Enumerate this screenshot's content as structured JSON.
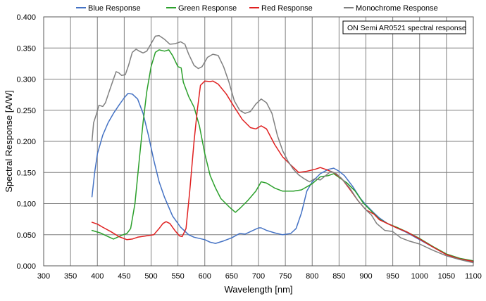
{
  "chart_data": {
    "type": "line",
    "title": "",
    "xlabel": "Wavelength [nm]",
    "ylabel": "Spectral Response [A/W]",
    "xlim": [
      300,
      1100
    ],
    "ylim": [
      0,
      0.4
    ],
    "x_ticks": [
      300,
      350,
      400,
      450,
      500,
      550,
      600,
      650,
      700,
      750,
      800,
      850,
      900,
      950,
      1000,
      1050,
      1100
    ],
    "y_ticks": [
      "0.000",
      "0.050",
      "0.100",
      "0.150",
      "0.200",
      "0.250",
      "0.300",
      "0.350",
      "0.400"
    ],
    "y_tick_values": [
      0,
      0.05,
      0.1,
      0.15,
      0.2,
      0.25,
      0.3,
      0.35,
      0.4
    ],
    "grid": true,
    "legend_position": "top",
    "annotation": "ON Semi AR0521 spectral response",
    "series": [
      {
        "name": "Blue Response",
        "color": "#4472C4",
        "points": [
          [
            390,
            0.111
          ],
          [
            395,
            0.15
          ],
          [
            400,
            0.18
          ],
          [
            410,
            0.21
          ],
          [
            420,
            0.23
          ],
          [
            430,
            0.245
          ],
          [
            440,
            0.258
          ],
          [
            450,
            0.27
          ],
          [
            457,
            0.277
          ],
          [
            465,
            0.276
          ],
          [
            475,
            0.268
          ],
          [
            485,
            0.245
          ],
          [
            495,
            0.21
          ],
          [
            505,
            0.17
          ],
          [
            515,
            0.135
          ],
          [
            525,
            0.11
          ],
          [
            540,
            0.08
          ],
          [
            555,
            0.062
          ],
          [
            570,
            0.05
          ],
          [
            580,
            0.046
          ],
          [
            600,
            0.042
          ],
          [
            610,
            0.038
          ],
          [
            620,
            0.036
          ],
          [
            635,
            0.04
          ],
          [
            650,
            0.045
          ],
          [
            665,
            0.052
          ],
          [
            675,
            0.051
          ],
          [
            690,
            0.057
          ],
          [
            700,
            0.061
          ],
          [
            705,
            0.061
          ],
          [
            715,
            0.057
          ],
          [
            730,
            0.053
          ],
          [
            745,
            0.05
          ],
          [
            760,
            0.052
          ],
          [
            770,
            0.06
          ],
          [
            780,
            0.085
          ],
          [
            790,
            0.12
          ],
          [
            800,
            0.135
          ],
          [
            815,
            0.148
          ],
          [
            830,
            0.155
          ],
          [
            840,
            0.157
          ],
          [
            850,
            0.152
          ],
          [
            860,
            0.145
          ],
          [
            875,
            0.128
          ],
          [
            890,
            0.108
          ],
          [
            900,
            0.098
          ],
          [
            915,
            0.085
          ],
          [
            925,
            0.077
          ],
          [
            940,
            0.068
          ],
          [
            960,
            0.06
          ],
          [
            975,
            0.054
          ],
          [
            1000,
            0.042
          ],
          [
            1025,
            0.03
          ],
          [
            1050,
            0.018
          ],
          [
            1075,
            0.011
          ],
          [
            1100,
            0.007
          ]
        ]
      },
      {
        "name": "Green Response",
        "color": "#2CA02C",
        "points": [
          [
            390,
            0.057
          ],
          [
            405,
            0.053
          ],
          [
            420,
            0.047
          ],
          [
            430,
            0.043
          ],
          [
            435,
            0.045
          ],
          [
            445,
            0.049
          ],
          [
            455,
            0.052
          ],
          [
            462,
            0.06
          ],
          [
            470,
            0.1
          ],
          [
            478,
            0.17
          ],
          [
            485,
            0.23
          ],
          [
            492,
            0.28
          ],
          [
            500,
            0.32
          ],
          [
            508,
            0.343
          ],
          [
            515,
            0.347
          ],
          [
            525,
            0.345
          ],
          [
            533,
            0.347
          ],
          [
            540,
            0.338
          ],
          [
            550,
            0.32
          ],
          [
            556,
            0.318
          ],
          [
            560,
            0.295
          ],
          [
            570,
            0.272
          ],
          [
            580,
            0.255
          ],
          [
            590,
            0.225
          ],
          [
            600,
            0.18
          ],
          [
            610,
            0.145
          ],
          [
            620,
            0.125
          ],
          [
            630,
            0.108
          ],
          [
            645,
            0.095
          ],
          [
            657,
            0.086
          ],
          [
            665,
            0.092
          ],
          [
            680,
            0.105
          ],
          [
            695,
            0.12
          ],
          [
            705,
            0.135
          ],
          [
            715,
            0.133
          ],
          [
            730,
            0.125
          ],
          [
            745,
            0.12
          ],
          [
            765,
            0.12
          ],
          [
            780,
            0.122
          ],
          [
            800,
            0.132
          ],
          [
            815,
            0.143
          ],
          [
            830,
            0.145
          ],
          [
            840,
            0.148
          ],
          [
            850,
            0.142
          ],
          [
            865,
            0.133
          ],
          [
            880,
            0.12
          ],
          [
            895,
            0.101
          ],
          [
            910,
            0.088
          ],
          [
            925,
            0.075
          ],
          [
            940,
            0.068
          ],
          [
            960,
            0.061
          ],
          [
            975,
            0.055
          ],
          [
            1000,
            0.044
          ],
          [
            1025,
            0.031
          ],
          [
            1050,
            0.019
          ],
          [
            1075,
            0.012
          ],
          [
            1100,
            0.008
          ]
        ]
      },
      {
        "name": "Red Response",
        "color": "#E02020",
        "points": [
          [
            390,
            0.07
          ],
          [
            400,
            0.067
          ],
          [
            410,
            0.062
          ],
          [
            425,
            0.055
          ],
          [
            440,
            0.047
          ],
          [
            455,
            0.042
          ],
          [
            465,
            0.043
          ],
          [
            475,
            0.046
          ],
          [
            490,
            0.048
          ],
          [
            505,
            0.05
          ],
          [
            515,
            0.06
          ],
          [
            522,
            0.068
          ],
          [
            528,
            0.071
          ],
          [
            535,
            0.068
          ],
          [
            545,
            0.056
          ],
          [
            553,
            0.048
          ],
          [
            558,
            0.047
          ],
          [
            565,
            0.06
          ],
          [
            572,
            0.12
          ],
          [
            580,
            0.2
          ],
          [
            586,
            0.25
          ],
          [
            592,
            0.29
          ],
          [
            600,
            0.297
          ],
          [
            610,
            0.296
          ],
          [
            615,
            0.297
          ],
          [
            625,
            0.292
          ],
          [
            640,
            0.276
          ],
          [
            655,
            0.255
          ],
          [
            670,
            0.235
          ],
          [
            685,
            0.222
          ],
          [
            695,
            0.22
          ],
          [
            705,
            0.225
          ],
          [
            715,
            0.22
          ],
          [
            730,
            0.195
          ],
          [
            745,
            0.175
          ],
          [
            760,
            0.162
          ],
          [
            775,
            0.15
          ],
          [
            790,
            0.152
          ],
          [
            805,
            0.155
          ],
          [
            815,
            0.158
          ],
          [
            825,
            0.155
          ],
          [
            840,
            0.15
          ],
          [
            855,
            0.14
          ],
          [
            870,
            0.123
          ],
          [
            885,
            0.105
          ],
          [
            900,
            0.09
          ],
          [
            915,
            0.083
          ],
          [
            925,
            0.074
          ],
          [
            940,
            0.068
          ],
          [
            960,
            0.06
          ],
          [
            975,
            0.055
          ],
          [
            1000,
            0.043
          ],
          [
            1025,
            0.03
          ],
          [
            1050,
            0.018
          ],
          [
            1075,
            0.011
          ],
          [
            1100,
            0.007
          ]
        ]
      },
      {
        "name": "Monochrome Response",
        "color": "#808080",
        "points": [
          [
            390,
            0.2
          ],
          [
            393,
            0.23
          ],
          [
            398,
            0.243
          ],
          [
            403,
            0.258
          ],
          [
            410,
            0.256
          ],
          [
            415,
            0.262
          ],
          [
            422,
            0.28
          ],
          [
            430,
            0.3
          ],
          [
            435,
            0.312
          ],
          [
            440,
            0.31
          ],
          [
            445,
            0.306
          ],
          [
            452,
            0.307
          ],
          [
            458,
            0.322
          ],
          [
            465,
            0.343
          ],
          [
            472,
            0.348
          ],
          [
            478,
            0.345
          ],
          [
            485,
            0.342
          ],
          [
            492,
            0.345
          ],
          [
            500,
            0.357
          ],
          [
            508,
            0.369
          ],
          [
            515,
            0.37
          ],
          [
            525,
            0.364
          ],
          [
            535,
            0.356
          ],
          [
            545,
            0.357
          ],
          [
            555,
            0.36
          ],
          [
            563,
            0.356
          ],
          [
            570,
            0.34
          ],
          [
            580,
            0.322
          ],
          [
            588,
            0.317
          ],
          [
            595,
            0.32
          ],
          [
            605,
            0.335
          ],
          [
            615,
            0.34
          ],
          [
            625,
            0.338
          ],
          [
            635,
            0.32
          ],
          [
            645,
            0.295
          ],
          [
            655,
            0.265
          ],
          [
            665,
            0.25
          ],
          [
            675,
            0.245
          ],
          [
            685,
            0.248
          ],
          [
            695,
            0.26
          ],
          [
            705,
            0.268
          ],
          [
            715,
            0.262
          ],
          [
            725,
            0.245
          ],
          [
            735,
            0.21
          ],
          [
            745,
            0.185
          ],
          [
            755,
            0.168
          ],
          [
            765,
            0.155
          ],
          [
            775,
            0.146
          ],
          [
            785,
            0.14
          ],
          [
            795,
            0.135
          ],
          [
            805,
            0.14
          ],
          [
            815,
            0.138
          ],
          [
            825,
            0.145
          ],
          [
            835,
            0.152
          ],
          [
            845,
            0.148
          ],
          [
            855,
            0.14
          ],
          [
            870,
            0.125
          ],
          [
            885,
            0.105
          ],
          [
            900,
            0.09
          ],
          [
            910,
            0.082
          ],
          [
            920,
            0.068
          ],
          [
            935,
            0.057
          ],
          [
            950,
            0.055
          ],
          [
            965,
            0.045
          ],
          [
            980,
            0.04
          ],
          [
            1000,
            0.035
          ],
          [
            1025,
            0.025
          ],
          [
            1050,
            0.016
          ],
          [
            1075,
            0.01
          ],
          [
            1100,
            0.005
          ]
        ]
      }
    ]
  }
}
